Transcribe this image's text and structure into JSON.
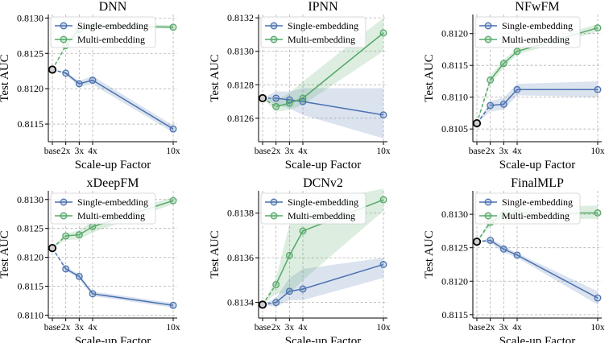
{
  "colors": {
    "single": "#4c72b0",
    "multi": "#55a868",
    "base_edge": "#000000"
  },
  "chart_data": [
    {
      "type": "line",
      "title": "DNN",
      "xlabel": "Scale-up Factor",
      "ylabel": "Test AUC",
      "x": [
        1,
        2,
        3,
        4,
        10
      ],
      "xticks": [
        1,
        2,
        3,
        4,
        10
      ],
      "xticklabels": [
        "base",
        "2x",
        "3x",
        "4x",
        "10x"
      ],
      "xlim": [
        0.7,
        10.3
      ],
      "ylim": [
        0.81125,
        0.81305
      ],
      "yticks": [
        0.8115,
        0.812,
        0.8125,
        0.813
      ],
      "yticklabels": [
        "0.8115",
        "0.8120",
        "0.8125",
        "0.8130"
      ],
      "legend": "upper-left",
      "series": [
        {
          "name": "Single-embedding",
          "values": [
            0.81227,
            0.81222,
            0.81207,
            0.81212,
            0.81143
          ],
          "lower": [
            0.81227,
            0.8122,
            0.81203,
            0.81206,
            0.81138
          ],
          "upper": [
            0.81227,
            0.81224,
            0.81211,
            0.81218,
            0.81148
          ]
        },
        {
          "name": "Multi-embedding",
          "values": [
            0.81227,
            0.81261,
            0.81284,
            0.81289,
            0.81287
          ],
          "lower": [
            0.81227,
            0.81258,
            0.8128,
            0.81286,
            0.81285
          ],
          "upper": [
            0.81227,
            0.81264,
            0.8129,
            0.81292,
            0.8129
          ]
        }
      ]
    },
    {
      "type": "line",
      "title": "IPNN",
      "xlabel": "Scale-up Factor",
      "ylabel": "Test AUC",
      "x": [
        1,
        2,
        3,
        4,
        10
      ],
      "xticks": [
        1,
        2,
        3,
        4,
        10
      ],
      "xticklabels": [
        "base",
        "2x",
        "3x",
        "4x",
        "10x"
      ],
      "xlim": [
        0.7,
        10.3
      ],
      "ylim": [
        0.81246,
        0.81322
      ],
      "yticks": [
        0.8126,
        0.8128,
        0.813,
        0.8132
      ],
      "yticklabels": [
        "0.8126",
        "0.8128",
        "0.8130",
        "0.8132"
      ],
      "legend": "upper-left",
      "series": [
        {
          "name": "Single-embedding",
          "values": [
            0.81272,
            0.81272,
            0.81271,
            0.8127,
            0.81262
          ],
          "lower": [
            0.81272,
            0.81268,
            0.81266,
            0.81262,
            0.81248
          ],
          "upper": [
            0.81272,
            0.81276,
            0.81276,
            0.81278,
            0.81278
          ]
        },
        {
          "name": "Multi-embedding",
          "values": [
            0.81272,
            0.81267,
            0.81269,
            0.81272,
            0.81311
          ],
          "lower": [
            0.81272,
            0.81264,
            0.81265,
            0.81268,
            0.813
          ],
          "upper": [
            0.81272,
            0.81271,
            0.81275,
            0.81282,
            0.8132
          ]
        }
      ]
    },
    {
      "type": "line",
      "title": "NFwFM",
      "xlabel": "Scale-up Factor",
      "ylabel": "Test AUC",
      "x": [
        1,
        2,
        3,
        4,
        10
      ],
      "xticks": [
        1,
        2,
        3,
        4,
        10
      ],
      "xticklabels": [
        "base",
        "2x",
        "3x",
        "4x",
        "10x"
      ],
      "xlim": [
        0.7,
        10.3
      ],
      "ylim": [
        0.8103,
        0.8123
      ],
      "yticks": [
        0.8105,
        0.811,
        0.8115,
        0.812
      ],
      "yticklabels": [
        "0.8105",
        "0.8110",
        "0.8115",
        "0.8120"
      ],
      "legend": "upper-left",
      "series": [
        {
          "name": "Single-embedding",
          "values": [
            0.81059,
            0.81087,
            0.81089,
            0.81112,
            0.81112
          ],
          "lower": [
            0.81059,
            0.81078,
            0.8108,
            0.81103,
            0.811
          ],
          "upper": [
            0.81059,
            0.81094,
            0.81099,
            0.81121,
            0.81125
          ]
        },
        {
          "name": "Multi-embedding",
          "values": [
            0.81059,
            0.81127,
            0.81153,
            0.81172,
            0.81209
          ],
          "lower": [
            0.81059,
            0.8112,
            0.81147,
            0.81167,
            0.81203
          ],
          "upper": [
            0.81059,
            0.81134,
            0.81159,
            0.81177,
            0.81215
          ]
        }
      ]
    },
    {
      "type": "line",
      "title": "xDeepFM",
      "xlabel": "Scale-up Factor",
      "ylabel": "Test AUC",
      "x": [
        1,
        2,
        3,
        4,
        10
      ],
      "xticks": [
        1,
        2,
        3,
        4,
        10
      ],
      "xticklabels": [
        "base",
        "2x",
        "3x",
        "4x",
        "10x"
      ],
      "xlim": [
        0.7,
        10.3
      ],
      "ylim": [
        0.81095,
        0.81315
      ],
      "yticks": [
        0.811,
        0.8115,
        0.812,
        0.8125,
        0.813
      ],
      "yticklabels": [
        "0.8110",
        "0.8115",
        "0.8120",
        "0.8125",
        "0.8130"
      ],
      "legend": "upper-left",
      "series": [
        {
          "name": "Single-embedding",
          "values": [
            0.81216,
            0.8118,
            0.81167,
            0.81137,
            0.81117
          ],
          "lower": [
            0.81216,
            0.81177,
            0.81163,
            0.81133,
            0.81113
          ],
          "upper": [
            0.81216,
            0.81184,
            0.81171,
            0.81141,
            0.81121
          ]
        },
        {
          "name": "Multi-embedding",
          "values": [
            0.81216,
            0.81237,
            0.81239,
            0.81253,
            0.81298
          ],
          "lower": [
            0.81216,
            0.8123,
            0.81231,
            0.81243,
            0.81292
          ],
          "upper": [
            0.81216,
            0.81241,
            0.81247,
            0.81262,
            0.81304
          ]
        }
      ]
    },
    {
      "type": "line",
      "title": "DCNv2",
      "xlabel": "Scale-up Factor",
      "ylabel": "Test AUC",
      "x": [
        1,
        2,
        3,
        4,
        10
      ],
      "xticks": [
        1,
        2,
        3,
        4,
        10
      ],
      "xticklabels": [
        "base",
        "2x",
        "3x",
        "4x",
        "10x"
      ],
      "xlim": [
        0.7,
        10.3
      ],
      "ylim": [
        0.81333,
        0.8139
      ],
      "yticks": [
        0.8134,
        0.8136,
        0.8138
      ],
      "yticklabels": [
        "0.8134",
        "0.8136",
        "0.8138"
      ],
      "legend": "upper-left",
      "series": [
        {
          "name": "Single-embedding",
          "values": [
            0.81339,
            0.8134,
            0.81345,
            0.81346,
            0.81357
          ],
          "lower": [
            0.81339,
            0.81338,
            0.81341,
            0.81341,
            0.81351
          ],
          "upper": [
            0.81339,
            0.81342,
            0.81351,
            0.81355,
            0.8136
          ]
        },
        {
          "name": "Multi-embedding",
          "values": [
            0.81339,
            0.81348,
            0.81361,
            0.81372,
            0.81386
          ],
          "lower": [
            0.81339,
            0.81344,
            0.81344,
            0.8135,
            0.81381
          ],
          "upper": [
            0.81339,
            0.81351,
            0.81375,
            0.81384,
            0.81391
          ]
        }
      ]
    },
    {
      "type": "line",
      "title": "FinalMLP",
      "xlabel": "Scale-up Factor",
      "ylabel": "Test AUC",
      "x": [
        1,
        2,
        3,
        4,
        10
      ],
      "xticks": [
        1,
        2,
        3,
        4,
        10
      ],
      "xticklabels": [
        "base",
        "2x",
        "3x",
        "4x",
        "10x"
      ],
      "xlim": [
        0.7,
        10.3
      ],
      "ylim": [
        0.81145,
        0.81335
      ],
      "yticks": [
        0.8115,
        0.812,
        0.8125,
        0.813
      ],
      "yticklabels": [
        "0.8115",
        "0.8120",
        "0.8125",
        "0.8130"
      ],
      "legend": "upper-left",
      "series": [
        {
          "name": "Single-embedding",
          "values": [
            0.81259,
            0.81261,
            0.81248,
            0.81239,
            0.81175
          ],
          "lower": [
            0.81259,
            0.81257,
            0.81243,
            0.81235,
            0.81165
          ],
          "upper": [
            0.81259,
            0.81264,
            0.81253,
            0.81242,
            0.81185
          ]
        },
        {
          "name": "Multi-embedding",
          "values": [
            0.81259,
            0.81288,
            0.81299,
            0.81302,
            0.81302
          ],
          "lower": [
            0.81259,
            0.81282,
            0.8129,
            0.81293,
            0.81293
          ],
          "upper": [
            0.81259,
            0.81294,
            0.81307,
            0.8131,
            0.81313
          ]
        }
      ]
    }
  ]
}
